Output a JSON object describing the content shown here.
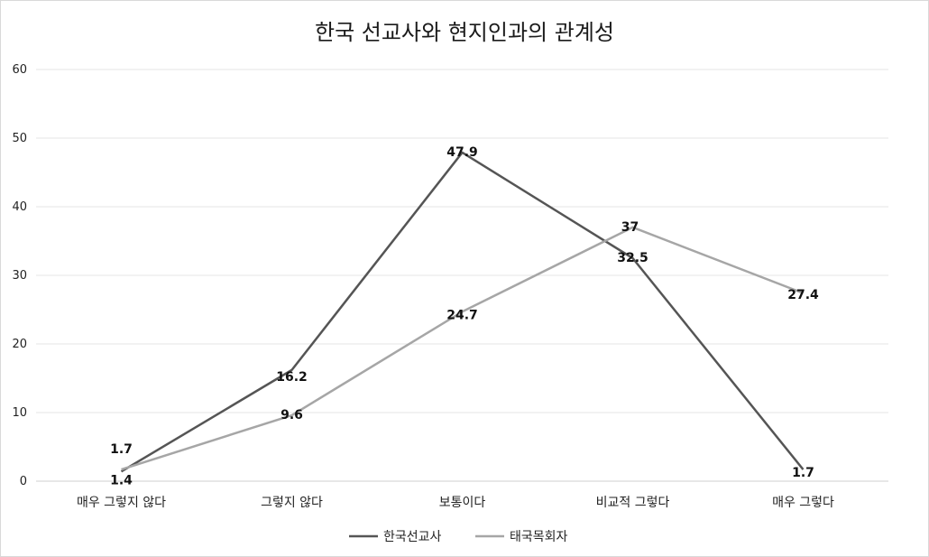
{
  "chart_data": {
    "type": "line",
    "title": "한국 선교사와 현지인과의 관계성",
    "xlabel": "",
    "ylabel": "",
    "categories": [
      "매우 그렇지 않다",
      "그렇지 않다",
      "보통이다",
      "비교적 그렇다",
      "매우 그렇다"
    ],
    "ylim": [
      0,
      60
    ],
    "yticks": [
      0,
      10,
      20,
      30,
      40,
      50,
      60
    ],
    "grid": true,
    "legend_position": "bottom",
    "series": [
      {
        "name": "한국선교사",
        "values": [
          1.4,
          16.2,
          47.9,
          32.5,
          1.7
        ],
        "labels": [
          "1.4",
          "16.2",
          "47.9",
          "32.5",
          "1.7"
        ],
        "color": "#555555"
      },
      {
        "name": "태국목회자",
        "values": [
          1.7,
          9.6,
          24.7,
          37,
          27.4
        ],
        "labels": [
          "1.7",
          "9.6",
          "24.7",
          "37",
          "27.4"
        ],
        "color": "#a6a6a6"
      }
    ]
  }
}
